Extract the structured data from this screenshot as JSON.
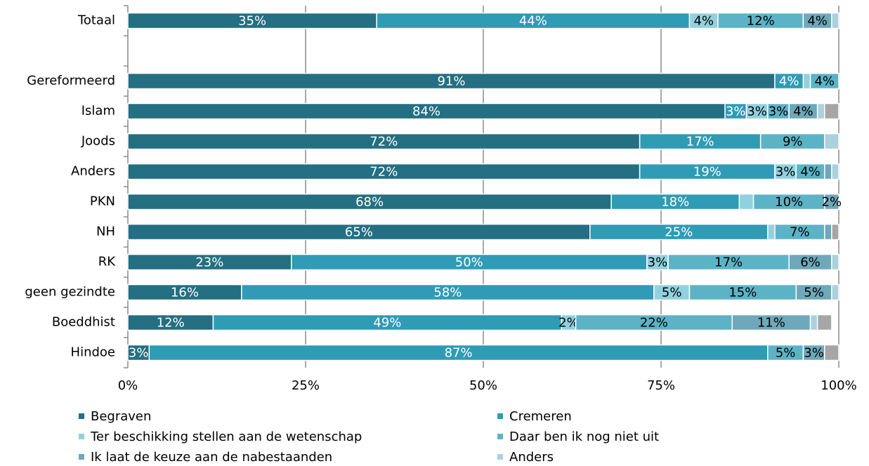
{
  "chart_data": {
    "type": "stacked-bar-horizontal",
    "categories": [
      "Totaal",
      null,
      "Gereformeerd",
      "Islam",
      "Joods",
      "Anders",
      "PKN",
      "NH",
      "RK",
      "geen gezindte",
      "Boeddhist",
      "Hindoe"
    ],
    "series": [
      {
        "name": "Begraven",
        "color": "#246f82",
        "values": [
          35,
          null,
          91,
          84,
          72,
          72,
          68,
          65,
          23,
          16,
          12,
          3
        ],
        "value_labels": [
          "35%",
          null,
          "91%",
          "84%",
          "72%",
          "72%",
          "68%",
          "65%",
          "23%",
          "16%",
          "12%",
          "3%"
        ]
      },
      {
        "name": "Cremeren",
        "color": "#2f9bb5",
        "values": [
          44,
          null,
          4,
          3,
          17,
          19,
          18,
          25,
          50,
          58,
          49,
          87
        ],
        "value_labels": [
          "44%",
          null,
          "4%",
          "3%",
          "17%",
          "19%",
          "18%",
          "25%",
          "50%",
          "58%",
          "49%",
          "87%"
        ]
      },
      {
        "name": "Ter beschikking stellen aan de wetenschap",
        "color": "#91d1df",
        "values": [
          4,
          null,
          1,
          3,
          0,
          3,
          2,
          1,
          3,
          5,
          2,
          0
        ],
        "value_labels": [
          "4%",
          null,
          null,
          "3%",
          null,
          "3%",
          null,
          null,
          "3%",
          "5%",
          "2%",
          null
        ]
      },
      {
        "name": "Daar ben ik nog niet uit",
        "color": "#5db3c6",
        "values": [
          12,
          null,
          4,
          3,
          9,
          4,
          10,
          7,
          17,
          15,
          22,
          5
        ],
        "value_labels": [
          "12%",
          null,
          "4%",
          "3%",
          "9%",
          "4%",
          "10%",
          "7%",
          "17%",
          "15%",
          "22%",
          "5%"
        ]
      },
      {
        "name": "Ik laat de keuze aan de nabestaanden",
        "color": "#6ea8ba",
        "values": [
          4,
          null,
          0,
          4,
          0,
          1,
          2,
          1,
          6,
          5,
          11,
          3
        ],
        "value_labels": [
          "4%",
          null,
          null,
          "4%",
          null,
          null,
          "2%",
          null,
          "6%",
          "5%",
          "11%",
          "3%"
        ]
      },
      {
        "name": "Anders",
        "color": "#abd1dd",
        "values": [
          1,
          null,
          0,
          1,
          2,
          1,
          0,
          0,
          1,
          1,
          1,
          0
        ],
        "value_labels": [
          null,
          null,
          null,
          null,
          null,
          null,
          null,
          null,
          null,
          null,
          null,
          null
        ]
      },
      {
        "color": "#a6a6a6",
        "values": [
          0,
          null,
          0,
          2,
          0,
          0,
          0,
          1,
          0,
          0,
          2,
          2
        ],
        "value_labels": [
          null,
          null,
          null,
          null,
          null,
          null,
          null,
          null,
          null,
          null,
          null,
          null
        ]
      }
    ],
    "xlim": [
      0,
      100
    ],
    "xticks": [
      {
        "value": 0,
        "label": "0%"
      },
      {
        "value": 25,
        "label": "25%"
      },
      {
        "value": 50,
        "label": "50%"
      },
      {
        "value": 75,
        "label": "75%"
      },
      {
        "value": 100,
        "label": "100%"
      }
    ],
    "grid": true
  }
}
